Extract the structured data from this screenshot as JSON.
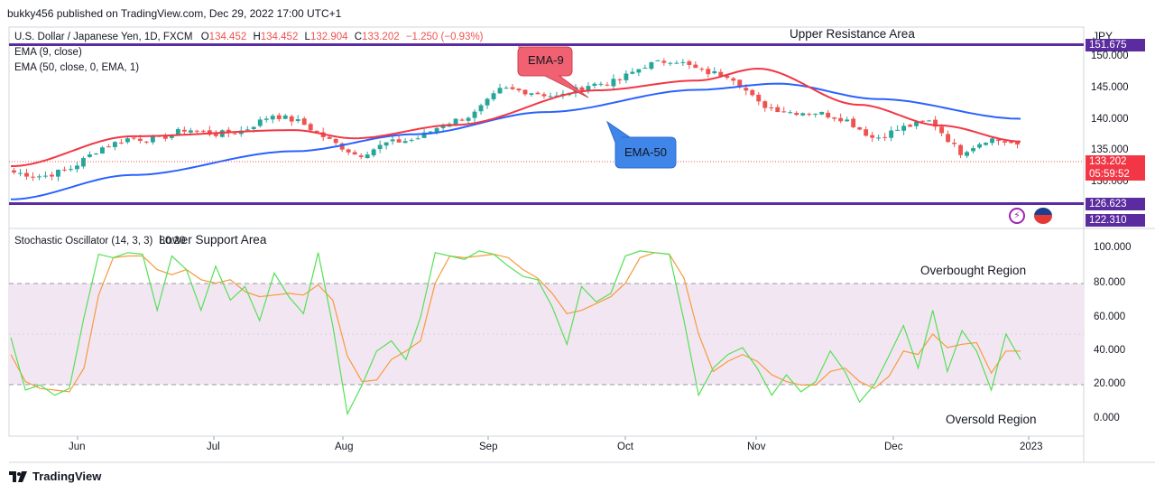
{
  "header": {
    "published": "bukky456 published on TradingView.com, Dec 29, 2022 17:00 UTC+1"
  },
  "legend": {
    "symbol": "U.S. Dollar / Japanese Yen, 1D, FXCM",
    "o_label": "O",
    "o_value": "134.452",
    "h_label": "H",
    "h_value": "134.452",
    "l_label": "L",
    "l_value": "132.904",
    "c_label": "C",
    "c_value": "133.202",
    "change": "−1.250 (−0.93%)",
    "ema9": "EMA (9, close)",
    "ema50": "EMA (50, close, 0, EMA, 1)",
    "stoch": "Stochastic Oscillator (14, 3, 3)",
    "stoch_values": "80.20"
  },
  "annotations": {
    "upper": "Upper Resistance Area",
    "lower": "Lower Support Area",
    "ema9_callout": "EMA-9",
    "ema50_callout": "EMA-50",
    "overbought": "Overbought Region",
    "oversold": "Oversold Region"
  },
  "price_axis": {
    "currency": "JPY",
    "upper_level": "151.675",
    "ticks": [
      "150.000",
      "145.000",
      "140.000",
      "135.000",
      "130.000"
    ],
    "last_price": "133.202",
    "countdown": "05:59:52",
    "support_level": "126.623",
    "lower_level": "122.310",
    "colors": {
      "last_price": "#f23645",
      "support": "#5b2c9f",
      "lower": "#5b2c9f"
    }
  },
  "osc_axis": {
    "ticks": [
      "100.000",
      "80.000",
      "60.000",
      "40.000",
      "20.000",
      "0.000"
    ]
  },
  "time_axis": {
    "labels": [
      "Jun",
      "Jul",
      "Aug",
      "Sep",
      "Oct",
      "Nov",
      "Dec",
      "2023"
    ]
  },
  "footer": {
    "brand": "TradingView"
  },
  "colors": {
    "up": "#26a69a",
    "down": "#ef5350",
    "ema9": "#f23645",
    "ema50": "#2962ff",
    "resistance_line": "#5b2c9f",
    "k_line": "#55e055",
    "d_line": "#f79a3c",
    "band_fill": "#f3e6f3",
    "ema9_callout": "#f06271",
    "ema50_callout": "#3f86e8"
  },
  "chart_data": [
    {
      "type": "candlestick",
      "title": "U.S. Dollar / Japanese Yen, 1D, FXCM",
      "x_labels": [
        "Jun",
        "Jul",
        "Aug",
        "Sep",
        "Oct",
        "Nov",
        "Dec",
        "2023"
      ],
      "ylim": [
        121.5,
        153.5
      ],
      "anchors_close": [
        [
          "May 19",
          127.8
        ],
        [
          "May 24",
          127.0
        ],
        [
          "May 31",
          128.6
        ],
        [
          "Jun 6",
          132.5
        ],
        [
          "Jun 10",
          134.4
        ],
        [
          "Jun 15",
          134.2
        ],
        [
          "Jun 22",
          136.2
        ],
        [
          "Jul 1",
          135.2
        ],
        [
          "Jul 7",
          135.9
        ],
        [
          "Jul 14",
          139.0
        ],
        [
          "Jul 21",
          137.5
        ],
        [
          "Jul 28",
          134.0
        ],
        [
          "Aug 2",
          131.0
        ],
        [
          "Aug 10",
          133.5
        ],
        [
          "Aug 16",
          134.2
        ],
        [
          "Aug 22",
          137.2
        ],
        [
          "Aug 31",
          138.9
        ],
        [
          "Sep 7",
          144.0
        ],
        [
          "Sep 14",
          143.4
        ],
        [
          "Sep 22",
          142.4
        ],
        [
          "Sep 30",
          144.7
        ],
        [
          "Oct 10",
          145.4
        ],
        [
          "Oct 14",
          148.5
        ],
        [
          "Oct 21",
          149.7
        ],
        [
          "Oct 27",
          147.3
        ],
        [
          "Nov 4",
          146.6
        ],
        [
          "Nov 10",
          141.0
        ],
        [
          "Nov 16",
          139.5
        ],
        [
          "Nov 23",
          139.4
        ],
        [
          "Nov 30",
          138.1
        ],
        [
          "Dec 2",
          134.3
        ],
        [
          "Dec 9",
          136.5
        ],
        [
          "Dec 15",
          137.8
        ],
        [
          "Dec 20",
          131.6
        ],
        [
          "Dec 27",
          134.4
        ],
        [
          "Dec 29",
          133.2
        ]
      ],
      "ema9_anchors": [
        [
          0,
          129.0
        ],
        [
          0.12,
          134.8
        ],
        [
          0.28,
          136.0
        ],
        [
          0.34,
          134.4
        ],
        [
          0.44,
          137.0
        ],
        [
          0.58,
          143.7
        ],
        [
          0.68,
          145.6
        ],
        [
          0.74,
          147.9
        ],
        [
          0.84,
          140.9
        ],
        [
          0.92,
          136.9
        ],
        [
          1.0,
          133.8
        ]
      ],
      "ema50_anchors": [
        [
          0,
          122.6
        ],
        [
          0.12,
          127.3
        ],
        [
          0.28,
          131.9
        ],
        [
          0.4,
          135.2
        ],
        [
          0.53,
          139.5
        ],
        [
          0.68,
          143.8
        ],
        [
          0.76,
          145.0
        ],
        [
          0.86,
          142.0
        ],
        [
          1.0,
          138.2
        ]
      ],
      "series": [
        {
          "name": "EMA (9, close)"
        },
        {
          "name": "EMA (50, close, 0, EMA, 1)"
        }
      ]
    },
    {
      "type": "line",
      "title": "Stochastic Oscillator (14, 3, 3)",
      "ylim": [
        0,
        100
      ],
      "x_labels": [
        "Jun",
        "Jul",
        "Aug",
        "Sep",
        "Oct",
        "Nov",
        "Dec",
        "2023"
      ],
      "series": [
        {
          "name": "%K",
          "values": [
            48,
            17,
            20,
            14,
            18,
            60,
            97,
            95,
            98,
            97,
            64,
            96,
            88,
            64,
            90,
            70,
            78,
            58,
            86,
            72,
            62,
            98,
            55,
            3,
            20,
            40,
            46,
            35,
            60,
            98,
            96,
            94,
            99,
            97,
            90,
            84,
            82,
            66,
            44,
            78,
            69,
            74,
            96,
            99,
            98,
            97,
            58,
            14,
            30,
            38,
            42,
            30,
            14,
            26,
            16,
            22,
            40,
            28,
            10,
            20,
            37,
            55,
            30,
            64,
            28,
            52,
            40,
            17,
            50,
            35
          ]
        },
        {
          "name": "%D",
          "values": [
            38,
            22,
            18,
            17,
            16,
            30,
            73,
            95,
            96,
            96,
            88,
            85,
            88,
            82,
            80,
            82,
            75,
            72,
            73,
            74,
            73,
            79,
            70,
            37,
            22,
            23,
            35,
            40,
            46,
            80,
            96,
            95,
            96,
            97,
            95,
            88,
            83,
            74,
            62,
            64,
            68,
            72,
            80,
            95,
            98,
            97,
            83,
            50,
            28,
            34,
            38,
            34,
            26,
            22,
            20,
            20,
            28,
            30,
            22,
            18,
            25,
            40,
            38,
            50,
            42,
            44,
            45,
            27,
            40,
            40
          ]
        }
      ],
      "bands": [
        20,
        80
      ]
    }
  ]
}
